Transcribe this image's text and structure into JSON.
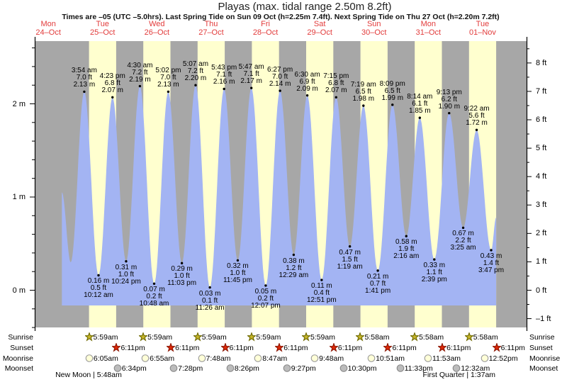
{
  "title": "Playas (max. tidal range 2.50m 8.2ft)",
  "subtitle": "Times are –05 (UTC –5.0hrs). Last Spring Tide on Sun 09 Oct (h=2.25m 7.4ft). Next Spring Tide on Thu 27 Oct (h=2.20m 7.2ft)",
  "days": [
    {
      "dow": "Mon",
      "date": "24–Oct"
    },
    {
      "dow": "Tue",
      "date": "25–Oct"
    },
    {
      "dow": "Wed",
      "date": "26–Oct"
    },
    {
      "dow": "Thu",
      "date": "27–Oct"
    },
    {
      "dow": "Fri",
      "date": "28–Oct"
    },
    {
      "dow": "Sat",
      "date": "29–Oct"
    },
    {
      "dow": "Sun",
      "date": "30–Oct"
    },
    {
      "dow": "Mon",
      "date": "31–Oct"
    },
    {
      "dow": "Tue",
      "date": "01–Nov"
    }
  ],
  "axes": {
    "left": [
      {
        "label": "2 m",
        "m": 2
      },
      {
        "label": "1 m",
        "m": 1
      },
      {
        "label": "0 m",
        "m": 0
      }
    ],
    "right": [
      {
        "label": "8 ft",
        "ft": 8
      },
      {
        "label": "7 ft",
        "ft": 7
      },
      {
        "label": "6 ft",
        "ft": 6
      },
      {
        "label": "5 ft",
        "ft": 5
      },
      {
        "label": "4 ft",
        "ft": 4
      },
      {
        "label": "3 ft",
        "ft": 3
      },
      {
        "label": "2 ft",
        "ft": 2
      },
      {
        "label": "1 ft",
        "ft": 1
      },
      {
        "label": "0 ft",
        "ft": 0
      },
      {
        "label": "–1 ft",
        "ft": -1
      }
    ]
  },
  "chart_data": {
    "type": "area",
    "title": "Playas (max. tidal range 2.50m 8.2ft)",
    "ylabel_left": "m",
    "ylabel_right": "ft",
    "ylim_m": [
      -0.42,
      2.67
    ],
    "grid": false,
    "tides": [
      {
        "kind": "high",
        "time": "3:54 am",
        "ft": "7.0 ft",
        "m": "2.13 m",
        "t": 27.9,
        "h": 2.13
      },
      {
        "kind": "low",
        "time": "10:12 am",
        "ft": "0.5 ft",
        "m": "0.16 m",
        "t": 34.2,
        "h": 0.16
      },
      {
        "kind": "high",
        "time": "4:23 pm",
        "ft": "6.8 ft",
        "m": "2.07 m",
        "t": 40.383,
        "h": 2.07
      },
      {
        "kind": "low",
        "time": "10:24 pm",
        "ft": "1.0 ft",
        "m": "0.31 m",
        "t": 46.4,
        "h": 0.31
      },
      {
        "kind": "high",
        "time": "4:30 am",
        "ft": "7.2 ft",
        "m": "2.19 m",
        "t": 52.5,
        "h": 2.19
      },
      {
        "kind": "low",
        "time": "10:48 am",
        "ft": "0.2 ft",
        "m": "0.07 m",
        "t": 58.8,
        "h": 0.07
      },
      {
        "kind": "high",
        "time": "5:02 pm",
        "ft": "7.0 ft",
        "m": "2.13 m",
        "t": 65.033,
        "h": 2.13
      },
      {
        "kind": "low",
        "time": "11:03 pm",
        "ft": "1.0 ft",
        "m": "0.29 m",
        "t": 71.05,
        "h": 0.29
      },
      {
        "kind": "high",
        "time": "5:07 am",
        "ft": "7.2 ft",
        "m": "2.20 m",
        "t": 77.117,
        "h": 2.2
      },
      {
        "kind": "low",
        "time": "11:26 am",
        "ft": "0.1 ft",
        "m": "0.03 m",
        "t": 83.433,
        "h": 0.03
      },
      {
        "kind": "high",
        "time": "5:43 pm",
        "ft": "7.1 ft",
        "m": "2.16 m",
        "t": 89.717,
        "h": 2.16
      },
      {
        "kind": "low",
        "time": "11:45 pm",
        "ft": "1.0 ft",
        "m": "0.32 m",
        "t": 95.75,
        "h": 0.32
      },
      {
        "kind": "high",
        "time": "5:47 am",
        "ft": "7.1 ft",
        "m": "2.17 m",
        "t": 101.783,
        "h": 2.17
      },
      {
        "kind": "low",
        "time": "12:07 pm",
        "ft": "0.2 ft",
        "m": "0.05 m",
        "t": 108.117,
        "h": 0.05
      },
      {
        "kind": "high",
        "time": "6:27 pm",
        "ft": "7.0 ft",
        "m": "2.14 m",
        "t": 114.45,
        "h": 2.14
      },
      {
        "kind": "low",
        "time": "12:29 am",
        "ft": "1.2 ft",
        "m": "0.38 m",
        "t": 120.483,
        "h": 0.38
      },
      {
        "kind": "high",
        "time": "6:30 am",
        "ft": "6.9 ft",
        "m": "2.09 m",
        "t": 126.5,
        "h": 2.09
      },
      {
        "kind": "low",
        "time": "12:51 pm",
        "ft": "0.4 ft",
        "m": "0.11 m",
        "t": 132.85,
        "h": 0.11
      },
      {
        "kind": "high",
        "time": "7:15 pm",
        "ft": "6.8 ft",
        "m": "2.07 m",
        "t": 139.25,
        "h": 2.07
      },
      {
        "kind": "low",
        "time": "1:19 am",
        "ft": "1.5 ft",
        "m": "0.47 m",
        "t": 145.317,
        "h": 0.47
      },
      {
        "kind": "high",
        "time": "7:19 am",
        "ft": "6.5 ft",
        "m": "1.98 m",
        "t": 151.317,
        "h": 1.98
      },
      {
        "kind": "low",
        "time": "1:41 pm",
        "ft": "0.7 ft",
        "m": "0.21 m",
        "t": 157.683,
        "h": 0.21
      },
      {
        "kind": "high",
        "time": "8:09 pm",
        "ft": "6.5 ft",
        "m": "1.99 m",
        "t": 164.15,
        "h": 1.99
      },
      {
        "kind": "low",
        "time": "2:16 am",
        "ft": "1.9 ft",
        "m": "0.58 m",
        "t": 170.267,
        "h": 0.58
      },
      {
        "kind": "high",
        "time": "8:14 am",
        "ft": "6.1 ft",
        "m": "1.85 m",
        "t": 176.233,
        "h": 1.85
      },
      {
        "kind": "low",
        "time": "2:39 pm",
        "ft": "1.1 ft",
        "m": "0.33 m",
        "t": 182.65,
        "h": 0.33
      },
      {
        "kind": "high",
        "time": "9:13 pm",
        "ft": "6.2 ft",
        "m": "1.90 m",
        "t": 189.217,
        "h": 1.9
      },
      {
        "kind": "low",
        "time": "3:25 am",
        "ft": "2.2 ft",
        "m": "0.67 m",
        "t": 195.417,
        "h": 0.67
      },
      {
        "kind": "high",
        "time": "9:22 am",
        "ft": "5.6 ft",
        "m": "1.72 m",
        "t": 201.367,
        "h": 1.72
      },
      {
        "kind": "low",
        "time": "3:47 pm",
        "ft": "1.4 ft",
        "m": "0.43 m",
        "t": 207.783,
        "h": 0.43
      }
    ],
    "curve": {
      "start": {
        "t": 18.0,
        "h": 1.05
      },
      "pre_low": {
        "t": 21.92,
        "h": 0.3
      },
      "end": {
        "t": 210.0,
        "h": 0.78
      }
    }
  },
  "astro": {
    "rows": [
      {
        "id": "sunrise",
        "label": "Sunrise",
        "icon": "star",
        "fill": "#c6b52a",
        "border": "#6f6a00",
        "events": [
          {
            "time": "5:59am",
            "t": 29.983
          },
          {
            "time": "5:59am",
            "t": 53.983
          },
          {
            "time": "5:59am",
            "t": 77.983
          },
          {
            "time": "5:59am",
            "t": 101.983
          },
          {
            "time": "5:59am",
            "t": 125.983
          },
          {
            "time": "5:58am",
            "t": 149.967
          },
          {
            "time": "5:58am",
            "t": 173.967
          },
          {
            "time": "5:58am",
            "t": 197.967
          }
        ]
      },
      {
        "id": "sunset",
        "label": "Sunset",
        "icon": "star",
        "fill": "#e02807",
        "border": "#8c1400",
        "events": [
          {
            "time": "6:11pm",
            "t": 42.183
          },
          {
            "time": "6:11pm",
            "t": 66.183
          },
          {
            "time": "6:11pm",
            "t": 90.183
          },
          {
            "time": "6:11pm",
            "t": 114.183
          },
          {
            "time": "6:11pm",
            "t": 138.183
          },
          {
            "time": "6:11pm",
            "t": 162.183
          },
          {
            "time": "6:11pm",
            "t": 186.183
          },
          {
            "time": "6:11pm",
            "t": 210.183
          }
        ]
      },
      {
        "id": "moonrise",
        "label": "Moonrise",
        "icon": "circle",
        "fill": "#ffffd8",
        "border": "#999999",
        "events": [
          {
            "time": "6:05am",
            "t": 30.083
          },
          {
            "time": "6:55am",
            "t": 54.917
          },
          {
            "time": "7:48am",
            "t": 79.8
          },
          {
            "time": "8:47am",
            "t": 104.783
          },
          {
            "time": "9:48am",
            "t": 129.8
          },
          {
            "time": "10:51am",
            "t": 154.85
          },
          {
            "time": "11:53am",
            "t": 179.883
          },
          {
            "time": "12:52pm",
            "t": 204.867
          }
        ]
      },
      {
        "id": "moonset",
        "label": "Moonset",
        "icon": "circle",
        "fill": "#bcbcbc",
        "border": "#888888",
        "events": [
          {
            "time": "6:34pm",
            "t": 42.567
          },
          {
            "time": "7:28pm",
            "t": 67.467
          },
          {
            "time": "8:26pm",
            "t": 92.433
          },
          {
            "time": "9:27pm",
            "t": 117.45
          },
          {
            "time": "10:30pm",
            "t": 142.5
          },
          {
            "time": "11:33pm",
            "t": 167.55
          },
          {
            "time": "12:32am",
            "t": 192.533
          }
        ]
      }
    ],
    "phases": [
      {
        "label": "New Moon | 5:48am",
        "t": 29.8
      },
      {
        "label": "First Quarter | 1:37am",
        "t": 193.617
      }
    ]
  },
  "colors": {
    "band_day": "#ffffcf",
    "band_night": "#a7a7a7",
    "water": "#a3b4f3",
    "day_label": "#e23b3b",
    "dot": "#000000",
    "axis": "#000000"
  }
}
